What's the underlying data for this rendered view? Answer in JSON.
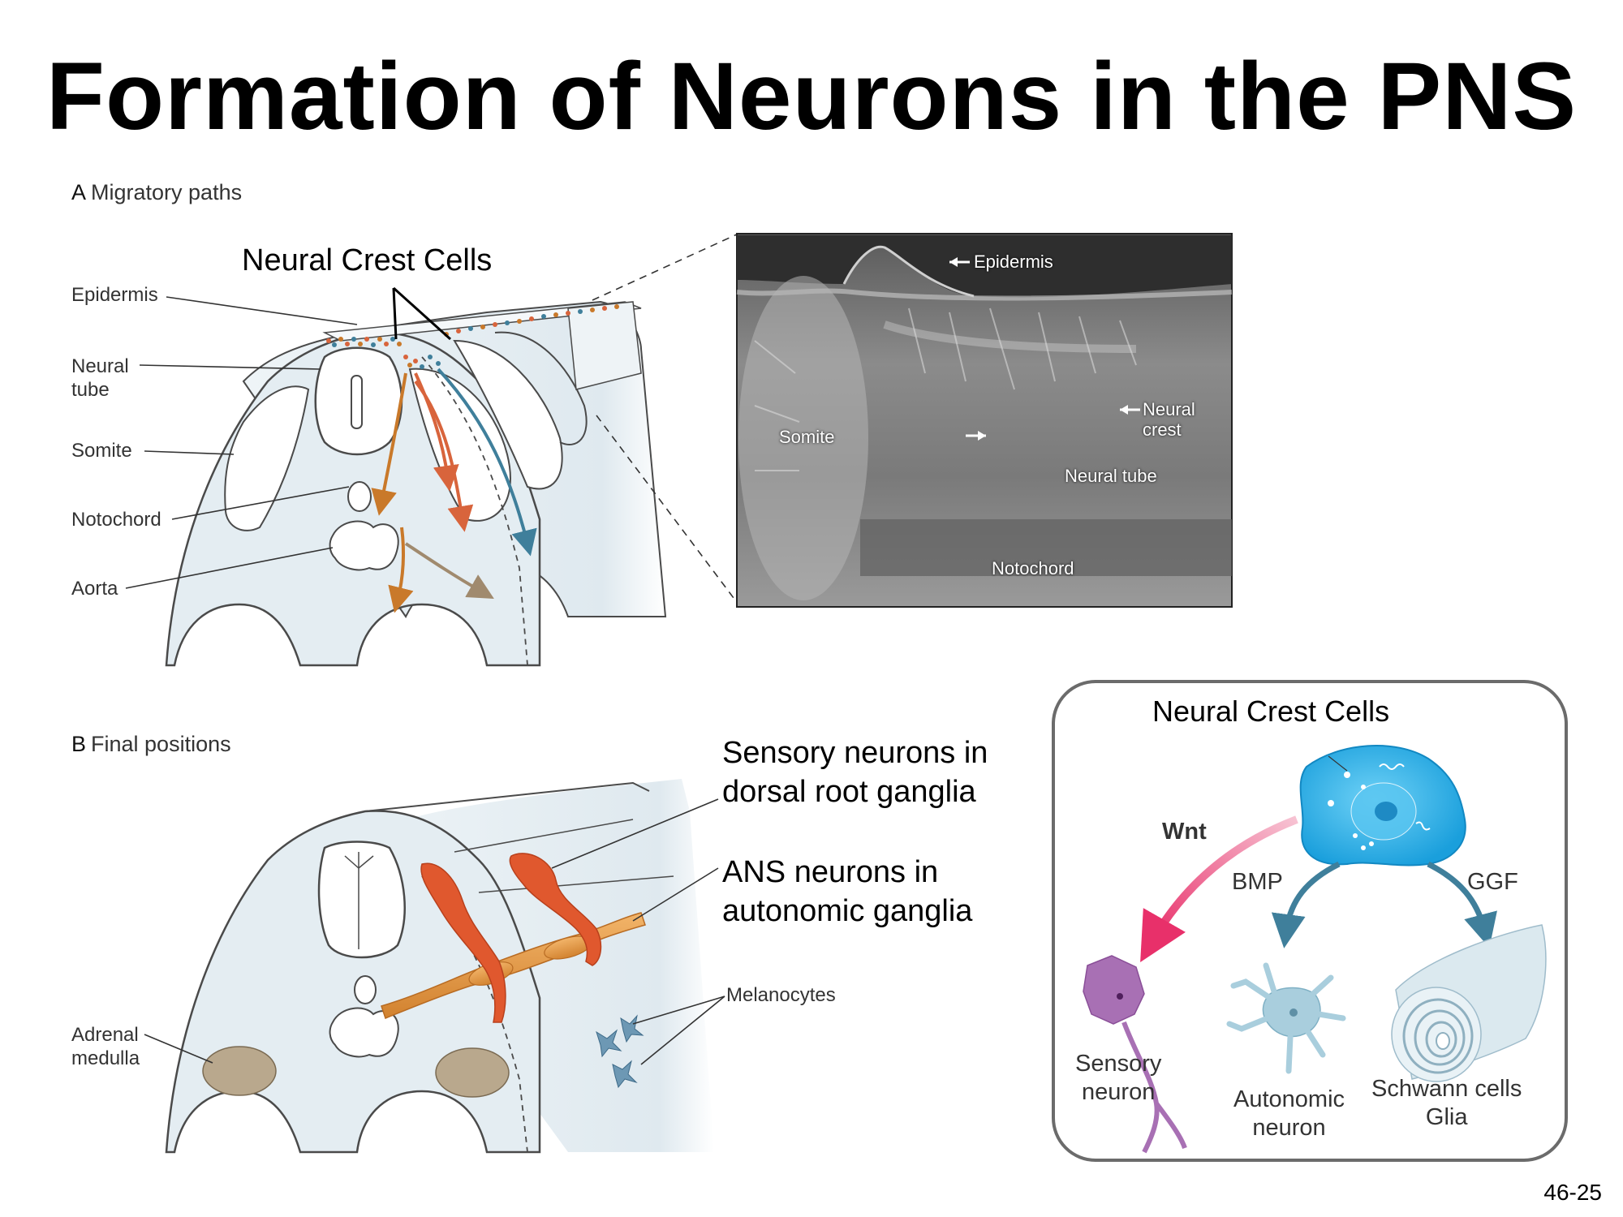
{
  "title": "Formation of Neurons in the PNS",
  "panel_a": {
    "letter": "A",
    "label": "Migratory paths",
    "neural_crest_cells": "Neural Crest Cells",
    "labels": {
      "epidermis": "Epidermis",
      "neural_tube": "Neural\ntube",
      "somite": "Somite",
      "notochord": "Notochord",
      "aorta": "Aorta"
    }
  },
  "micrograph": {
    "epidermis": "Epidermis",
    "somite": "Somite",
    "neural_crest": "Neural\ncrest",
    "neural_tube": "Neural tube",
    "notochord": "Notochord"
  },
  "panel_b": {
    "letter": "B",
    "label": "Final positions",
    "sensory_neurons": "Sensory neurons in\ndorsal root ganglia",
    "ans_neurons": "ANS neurons in\nautonomic ganglia",
    "melanocytes": "Melanocytes",
    "adrenal_medulla": "Adrenal\nmedulla"
  },
  "fate_box": {
    "title": "Neural Crest Cells",
    "wnt": "Wnt",
    "bmp": "BMP",
    "ggf": "GGF",
    "sensory": "Sensory\nneuron",
    "autonomic": "Autonomic\nneuron",
    "schwann": "Schwann cells\nGlia"
  },
  "slide_number": "46-25",
  "colors": {
    "tissue": "#e4edf2",
    "outline": "#4a4a4a",
    "orange_path": "#c9792a",
    "red_path": "#d8643c",
    "blue_path": "#3f7f9b",
    "brown_path": "#a08a6e",
    "ganglia": "#e0582e",
    "ans_chain": "#e39a4a",
    "adrenal": "#b9a88d",
    "stem_cell": "#2bb0e8",
    "wnt_arrow": "#e8306a",
    "sensory_neuron": "#a870b4",
    "autonomic_neuron": "#a9cedd"
  }
}
